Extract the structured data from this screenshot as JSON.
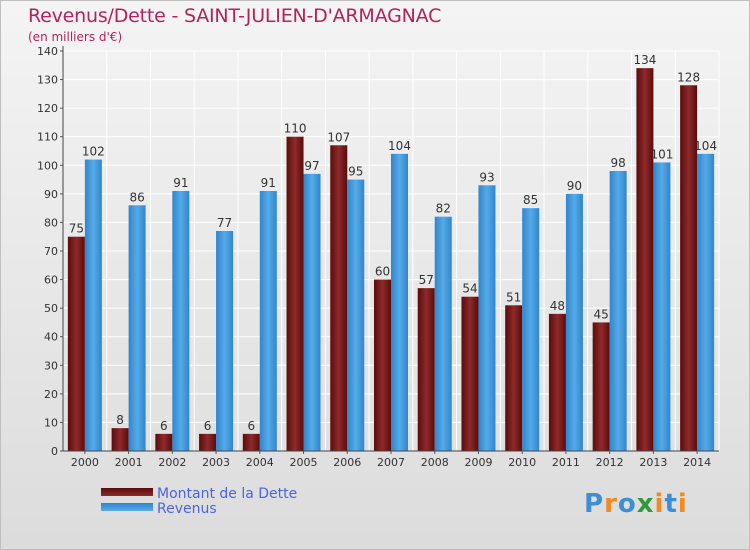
{
  "title": "Revenus/Dette - SAINT-JULIEN-D'ARMAGNAC",
  "subtitle": "(en milliers d'€)",
  "colors": {
    "debt": "#7a1414",
    "revenue": "#3d96dc",
    "title": "#b0245a",
    "legend_text": "#4e64d8"
  },
  "logo": {
    "text": "Proxiti",
    "letters": [
      "P",
      "r",
      "o",
      "x",
      "i",
      "t",
      "i"
    ],
    "colors": [
      "#3a8fd8",
      "#f28a1e",
      "#3a8fd8",
      "#2e9a3c",
      "#f28a1e",
      "#3a8fd8",
      "#f28a1e"
    ]
  },
  "chart_data": {
    "type": "bar",
    "categories": [
      "2000",
      "2001",
      "2002",
      "2003",
      "2004",
      "2005",
      "2006",
      "2007",
      "2008",
      "2009",
      "2010",
      "2011",
      "2012",
      "2013",
      "2014"
    ],
    "series": [
      {
        "name": "Montant de la Dette",
        "values": [
          75,
          8,
          6,
          6,
          6,
          110,
          107,
          60,
          57,
          54,
          51,
          48,
          45,
          134,
          128
        ]
      },
      {
        "name": "Revenus",
        "values": [
          102,
          86,
          91,
          77,
          91,
          97,
          95,
          104,
          82,
          93,
          85,
          90,
          98,
          101,
          104
        ]
      }
    ],
    "ylim": [
      0,
      140
    ],
    "yticks": [
      0,
      10,
      20,
      30,
      40,
      50,
      60,
      70,
      80,
      90,
      100,
      110,
      120,
      130,
      140
    ],
    "grid": true,
    "legend_position": "bottom-left"
  }
}
